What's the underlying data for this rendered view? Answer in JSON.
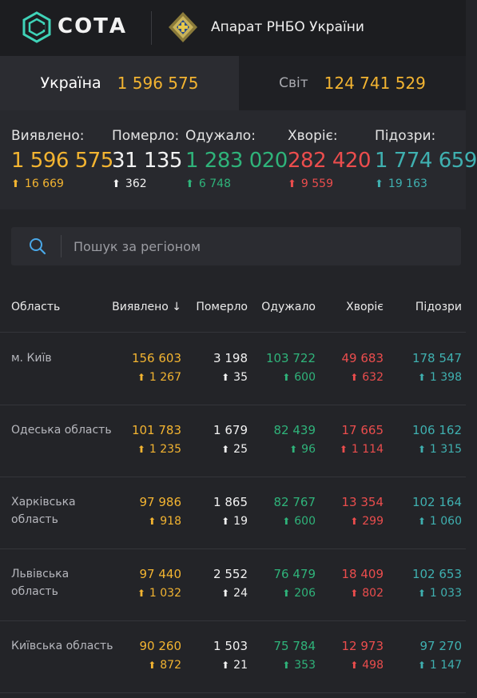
{
  "header": {
    "brand": "СОТА",
    "org": "Апарат РНБО України",
    "logo_icon": "sota-logo-icon",
    "emblem_icon": "rnbo-emblem-icon"
  },
  "tabs": [
    {
      "label": "Україна",
      "value": "1 596 575",
      "active": true
    },
    {
      "label": "Світ",
      "value": "124 741 529",
      "active": false
    }
  ],
  "stats": [
    {
      "label": "Виявлено:",
      "value": "1 596 575",
      "delta": "16 669",
      "color": "#f3b431"
    },
    {
      "label": "Померло:",
      "value": "31 135",
      "delta": "362",
      "color": "#f2f2f2"
    },
    {
      "label": "Одужало:",
      "value": "1 283 020",
      "delta": "6 748",
      "color": "#2fb37a"
    },
    {
      "label": "Хворіє:",
      "value": "282 420",
      "delta": "9 559",
      "color": "#eb4d4d"
    },
    {
      "label": "Підозри:",
      "value": "1 774 659",
      "delta": "19 163",
      "color": "#3fb0b0"
    }
  ],
  "search": {
    "placeholder": "Пошук за регіоном",
    "value": ""
  },
  "table": {
    "columns": [
      "Область",
      "Виявлено",
      "Померло",
      "Одужало",
      "Хворіє",
      "Підозри"
    ],
    "sort_indicator": "↓",
    "rows": [
      {
        "region": "м. Київ",
        "cells": [
          [
            "156 603",
            "1 267"
          ],
          [
            "3 198",
            "35"
          ],
          [
            "103 722",
            "600"
          ],
          [
            "49 683",
            "632"
          ],
          [
            "178 547",
            "1 398"
          ]
        ]
      },
      {
        "region": "Одеська область",
        "cells": [
          [
            "101 783",
            "1 235"
          ],
          [
            "1 679",
            "25"
          ],
          [
            "82 439",
            "96"
          ],
          [
            "17 665",
            "1 114"
          ],
          [
            "106 162",
            "1 315"
          ]
        ]
      },
      {
        "region": "Харківська область",
        "cells": [
          [
            "97 986",
            "918"
          ],
          [
            "1 865",
            "19"
          ],
          [
            "82 767",
            "600"
          ],
          [
            "13 354",
            "299"
          ],
          [
            "102 164",
            "1 060"
          ]
        ]
      },
      {
        "region": "Львівська область",
        "cells": [
          [
            "97 440",
            "1 032"
          ],
          [
            "2 552",
            "24"
          ],
          [
            "76 479",
            "206"
          ],
          [
            "18 409",
            "802"
          ],
          [
            "102 653",
            "1 033"
          ]
        ]
      },
      {
        "region": "Київська область",
        "cells": [
          [
            "90 260",
            "872"
          ],
          [
            "1 503",
            "21"
          ],
          [
            "75 784",
            "353"
          ],
          [
            "12 973",
            "498"
          ],
          [
            "97 270",
            "1 147"
          ]
        ]
      }
    ]
  }
}
